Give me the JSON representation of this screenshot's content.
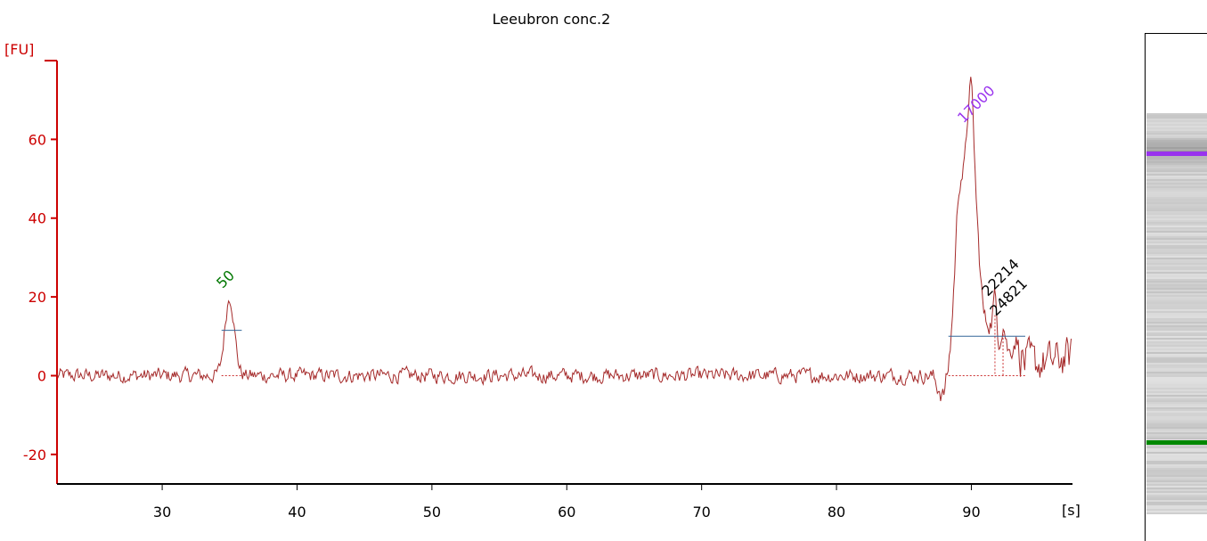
{
  "chart_data": {
    "type": "line",
    "title": "Leeubron conc.2",
    "ylabel": "[FU]",
    "xlabel": "[s]",
    "xlim": [
      22.2,
      97.5
    ],
    "ylim": [
      -27.5,
      80
    ],
    "xticks": [
      30,
      40,
      50,
      60,
      70,
      80,
      90
    ],
    "yticks": [
      -20,
      0,
      20,
      40,
      60
    ],
    "grid": false,
    "axis_color": "#cc0000",
    "line_color": "#a52a2a",
    "peak_marker_color": "#336699",
    "noise_amplitude": 1.6,
    "baseline_points": [
      [
        22.2,
        0
      ],
      [
        87.0,
        0
      ],
      [
        87.6,
        -3
      ],
      [
        87.9,
        -5.5
      ],
      [
        88.3,
        -1
      ],
      [
        89.0,
        5
      ],
      [
        92.5,
        5
      ],
      [
        93.5,
        4
      ],
      [
        95.0,
        3
      ],
      [
        96.5,
        4
      ],
      [
        97.4,
        5
      ]
    ],
    "peaks": [
      {
        "x": 35.0,
        "height": 20,
        "width": 0.35,
        "label": "50",
        "label_color": "#007700"
      },
      {
        "x": 89.2,
        "height": 44,
        "width": 0.4
      },
      {
        "x": 89.95,
        "height": 57,
        "width": 0.28,
        "label": "17000",
        "label_color": "#9933ee"
      },
      {
        "x": 90.5,
        "height": 22,
        "width": 0.3
      },
      {
        "x": 91.3,
        "height": 8,
        "width": 0.25
      },
      {
        "x": 91.75,
        "height": 13,
        "width": 0.15,
        "label": "22214",
        "label_color": "#000000"
      },
      {
        "x": 92.35,
        "height": 8,
        "width": 0.2,
        "label": "24821",
        "label_color": "#000000"
      },
      {
        "x": 93.3,
        "height": 5,
        "width": 0.25
      }
    ],
    "peak_baselines": [
      {
        "x1": 34.4,
        "x2": 35.9,
        "y": 11.5,
        "base_y": 0
      },
      {
        "x1": 88.3,
        "x2": 94.0,
        "y": 10,
        "base_y": 0
      }
    ],
    "gel_bands": [
      {
        "position": 0.1,
        "color": "#9933ee",
        "label": "17000"
      },
      {
        "position": 0.82,
        "color": "#008800",
        "label": "50"
      }
    ]
  }
}
